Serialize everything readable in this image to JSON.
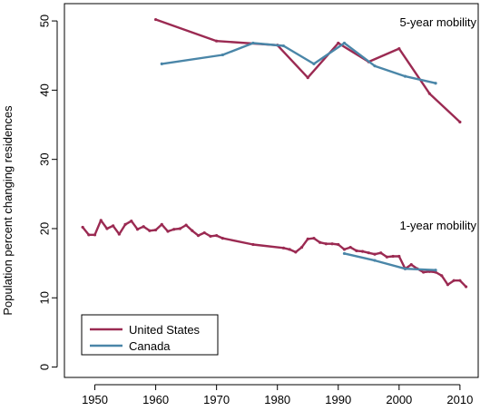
{
  "chart_data": {
    "type": "line",
    "ylabel": "Population percent changing residences",
    "xlabel": "",
    "xlim": [
      1945,
      2013
    ],
    "ylim": [
      -1.5,
      52.5
    ],
    "xticks": [
      1950,
      1960,
      1970,
      1980,
      1990,
      2000,
      2010
    ],
    "yticks": [
      0,
      10,
      20,
      30,
      40,
      50
    ],
    "grid": false,
    "legend": {
      "placement": "bottom-left",
      "entries": [
        "United States",
        "Canada"
      ]
    },
    "annotations": [
      {
        "text": "5-year mobility"
      },
      {
        "text": "1-year mobility"
      }
    ],
    "series": [
      {
        "name": "United States",
        "group": "5-year",
        "color": "#9b2a52",
        "x": [
          1960,
          1970,
          1980,
          1985,
          1990,
          1995,
          2000,
          2005,
          2010
        ],
        "y": [
          50.2,
          47.1,
          46.5,
          41.8,
          46.8,
          44.1,
          46.0,
          39.5,
          35.4
        ]
      },
      {
        "name": "Canada",
        "group": "5-year",
        "color": "#4a86a8",
        "x": [
          1961,
          1971,
          1976,
          1981,
          1986,
          1991,
          1996,
          2001,
          2006
        ],
        "y": [
          43.8,
          45.1,
          46.8,
          46.4,
          43.8,
          46.8,
          43.5,
          42.0,
          41.0
        ]
      },
      {
        "name": "United States",
        "group": "1-year",
        "color": "#9b2a52",
        "x": [
          1948,
          1949,
          1950,
          1951,
          1952,
          1953,
          1954,
          1955,
          1956,
          1957,
          1958,
          1959,
          1960,
          1961,
          1962,
          1963,
          1964,
          1965,
          1966,
          1967,
          1968,
          1969,
          1970,
          1971,
          1976,
          1981,
          1982,
          1983,
          1984,
          1985,
          1986,
          1987,
          1988,
          1989,
          1990,
          1991,
          1992,
          1993,
          1994,
          1995,
          1996,
          1997,
          1998,
          1999,
          2000,
          2001,
          2002,
          2003,
          2004,
          2005,
          2006,
          2007,
          2008,
          2009,
          2010,
          2011
        ],
        "y": [
          20.2,
          19.1,
          19.1,
          21.2,
          20.0,
          20.4,
          19.2,
          20.6,
          21.1,
          19.9,
          20.3,
          19.7,
          19.8,
          20.6,
          19.6,
          19.9,
          20.0,
          20.5,
          19.7,
          19.0,
          19.4,
          18.9,
          19.0,
          18.6,
          17.7,
          17.2,
          17.0,
          16.6,
          17.3,
          18.5,
          18.6,
          18.0,
          17.8,
          17.8,
          17.7,
          17.0,
          17.3,
          16.8,
          16.7,
          16.5,
          16.3,
          16.5,
          15.9,
          16.0,
          16.0,
          14.2,
          14.8,
          14.2,
          13.7,
          13.8,
          13.7,
          13.2,
          11.9,
          12.5,
          12.5,
          11.6
        ]
      },
      {
        "name": "Canada",
        "group": "1-year",
        "color": "#4a86a8",
        "x": [
          1991,
          1996,
          2001,
          2006
        ],
        "y": [
          16.4,
          15.4,
          14.2,
          14.0
        ]
      }
    ]
  }
}
